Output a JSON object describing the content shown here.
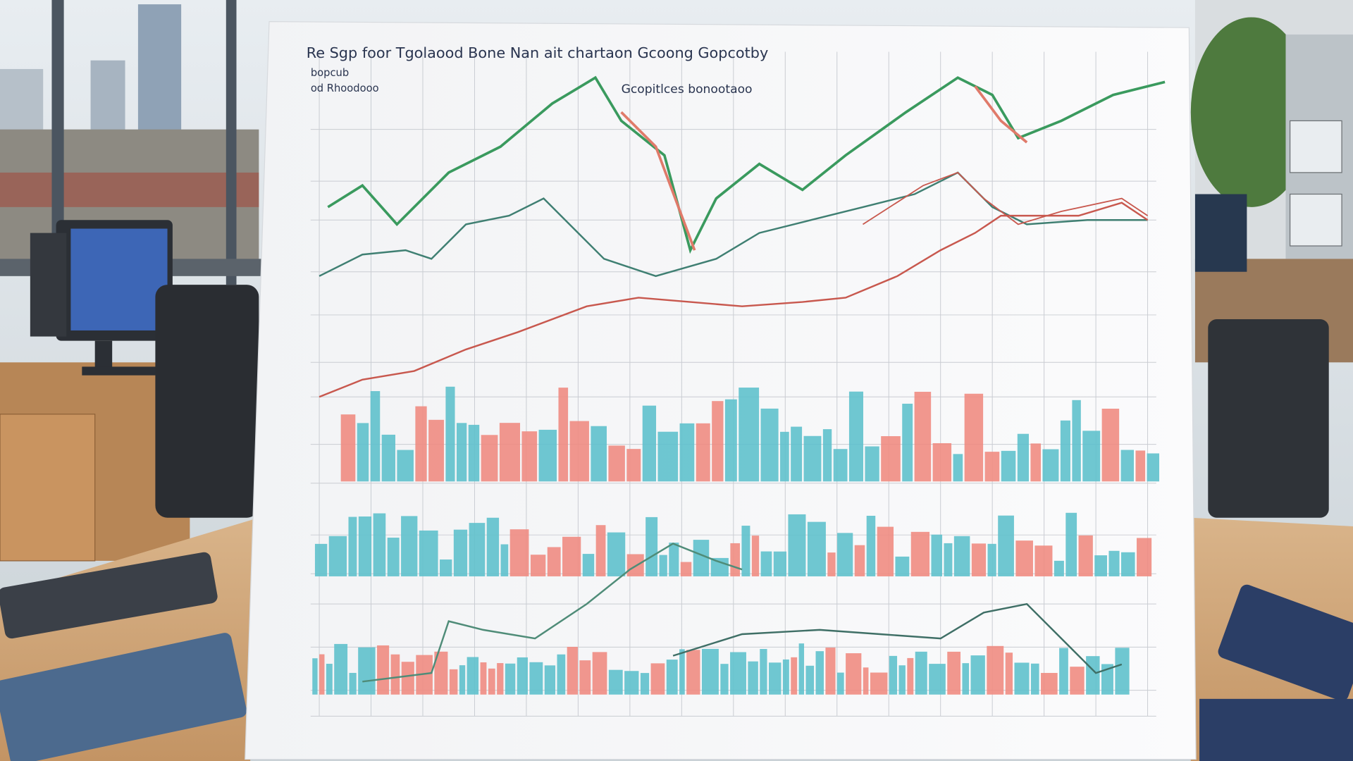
{
  "document": {
    "title": "Re Sgp foor Tgolaood Bone Nan ait chartaon Gcoong Gopcotby",
    "subtitle_lines": [
      "bopcub",
      "od Rhoodooo"
    ],
    "caption": "Gcopitlces bonootaoo"
  }
}
